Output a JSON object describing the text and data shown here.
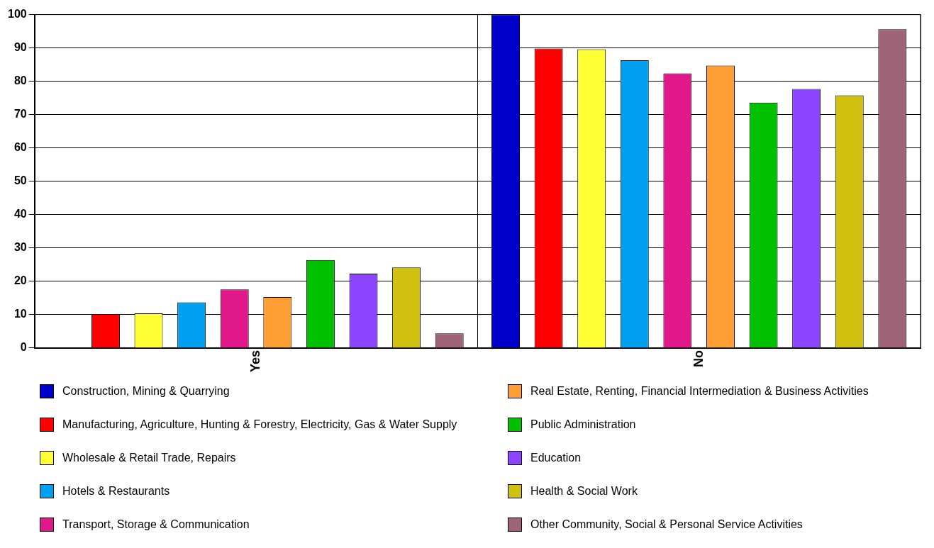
{
  "chart_data": {
    "type": "bar",
    "categories": [
      "Yes",
      "No"
    ],
    "series": [
      {
        "name": "Construction, Mining & Quarrying",
        "color": "#0000cc",
        "values": [
          0,
          100
        ]
      },
      {
        "name": "Manufacturing, Agriculture, Hunting & Forestry, Electricity, Gas & Water Supply",
        "color": "#ff0000",
        "values": [
          10.2,
          89.8
        ]
      },
      {
        "name": "Wholesale & Retail Trade, Repairs",
        "color": "#ffff33",
        "values": [
          10.4,
          89.6
        ]
      },
      {
        "name": "Hotels & Restaurants",
        "color": "#00a0f0",
        "values": [
          13.7,
          86.3
        ]
      },
      {
        "name": "Transport, Storage & Communication",
        "color": "#e0188a",
        "values": [
          17.6,
          82.4
        ]
      },
      {
        "name": "Real Estate, Renting, Financial Intermediation & Business Activities",
        "color": "#ff9f33",
        "values": [
          15.3,
          84.7
        ]
      },
      {
        "name": "Public Administration",
        "color": "#00c000",
        "values": [
          26.4,
          73.6
        ]
      },
      {
        "name": "Education",
        "color": "#8c44ff",
        "values": [
          22.3,
          77.7
        ]
      },
      {
        "name": "Health & Social Work",
        "color": "#d0c010",
        "values": [
          24.2,
          75.8
        ]
      },
      {
        "name": "Other Community, Social & Personal Service Activities",
        "color": "#a06478",
        "values": [
          4.4,
          95.6
        ]
      }
    ],
    "ylim": [
      0,
      100
    ],
    "yticks": [
      0,
      10,
      20,
      30,
      40,
      50,
      60,
      70,
      80,
      90,
      100
    ],
    "grid": true,
    "legend": "bottom"
  }
}
